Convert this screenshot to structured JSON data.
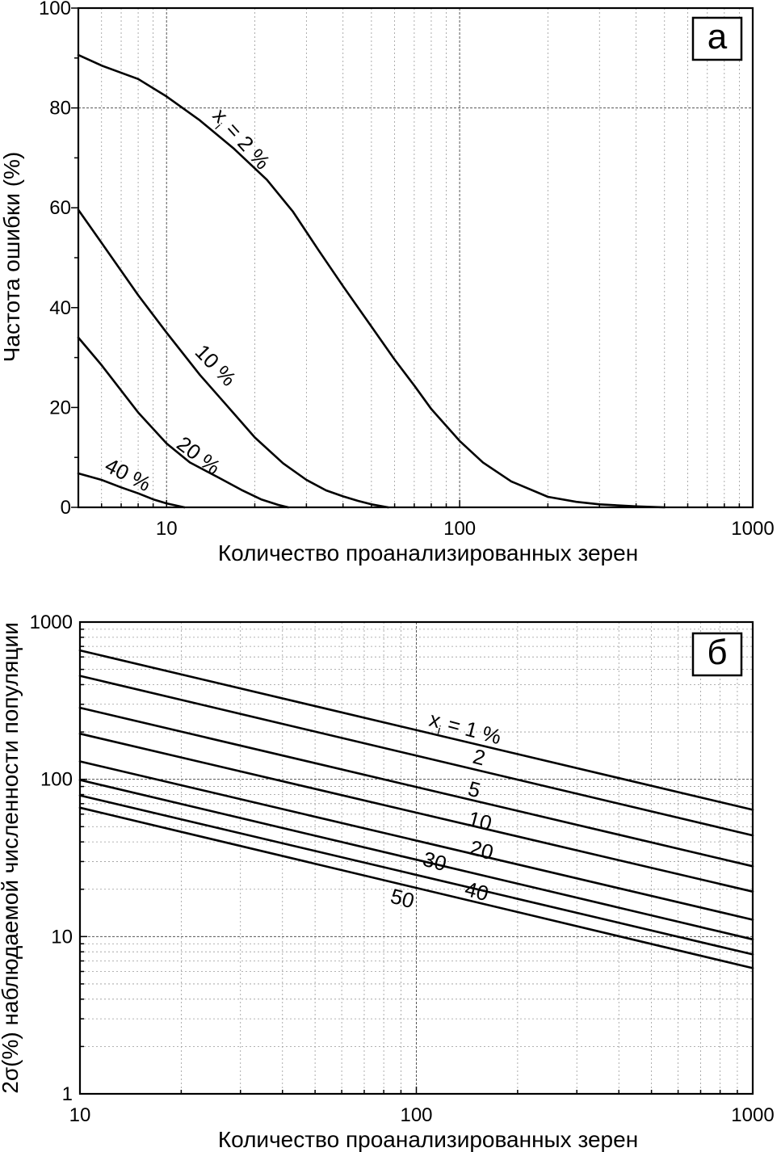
{
  "chart_data": [
    {
      "panel": "а",
      "type": "line",
      "xscale": "log",
      "yscale": "linear",
      "xlim": [
        5,
        1000
      ],
      "ylim": [
        0,
        100
      ],
      "xlabel": "Количество проанализированных зерен",
      "ylabel": "Частота ошибки (%)",
      "xticks": [
        10,
        100,
        1000
      ],
      "xtick_labels": [
        "10",
        "100",
        "1000"
      ],
      "yticks": [
        0,
        20,
        40,
        60,
        80,
        100
      ],
      "ytick_labels": [
        "0",
        "20",
        "40",
        "60",
        "80",
        "100"
      ],
      "grid": "vertical log minor lines, horizontal line at 80",
      "series": [
        {
          "label": "x_i = 2 %",
          "label_main": "x",
          "label_sub": "i",
          "label_rest": " = 2 %",
          "x": [
            5,
            6,
            8,
            10,
            13,
            17,
            22,
            27,
            33,
            40,
            50,
            60,
            70,
            80,
            100,
            120,
            150,
            200,
            250,
            300,
            400,
            500
          ],
          "y": [
            90.6,
            88.5,
            85.8,
            82.3,
            77.5,
            71.8,
            65.6,
            59.2,
            51.5,
            44.3,
            36.2,
            29.6,
            24.4,
            19.7,
            13.3,
            9.0,
            5.2,
            2.1,
            1.1,
            0.6,
            0.2,
            0
          ]
        },
        {
          "label": "10 %",
          "x": [
            5,
            6,
            8,
            10,
            13,
            16,
            20,
            25,
            30,
            35,
            40,
            45,
            50,
            57
          ],
          "y": [
            59.6,
            53.0,
            42.5,
            35.0,
            26.5,
            20.5,
            14.0,
            8.8,
            5.5,
            3.4,
            2.2,
            1.3,
            0.6,
            0
          ]
        },
        {
          "label": "20 %",
          "x": [
            5,
            6,
            8,
            10,
            12,
            15,
            18,
            21,
            24,
            26
          ],
          "y": [
            34.0,
            28.5,
            19.0,
            12.8,
            9.0,
            6.0,
            3.5,
            1.6,
            0.5,
            0
          ]
        },
        {
          "label": "40 %",
          "x": [
            5,
            6,
            7,
            8,
            9,
            10,
            11.5
          ],
          "y": [
            6.8,
            5.5,
            4.0,
            2.8,
            1.6,
            0.8,
            0
          ]
        }
      ]
    },
    {
      "panel": "б",
      "type": "line",
      "xscale": "log",
      "yscale": "log",
      "xlim": [
        10,
        1000
      ],
      "ylim": [
        1,
        1000
      ],
      "xlabel": "Количество проанализированных зерен",
      "ylabel": "2σ(%) наблюдаемой численности популяции",
      "xticks": [
        10,
        100,
        1000
      ],
      "xtick_labels": [
        "10",
        "100",
        "1000"
      ],
      "yticks": [
        1,
        10,
        100,
        1000
      ],
      "ytick_labels": [
        "1",
        "10",
        "100",
        "1000"
      ],
      "grid": "log minor lines both axes",
      "series": [
        {
          "label": "x_i = 1 %",
          "label_main": "x",
          "label_sub": "i",
          "label_rest": " = 1 %",
          "x": [
            10,
            1000
          ],
          "y": [
            660,
            64
          ]
        },
        {
          "label": "2",
          "x": [
            10,
            1000
          ],
          "y": [
            455,
            44
          ]
        },
        {
          "label": "5",
          "x": [
            10,
            1000
          ],
          "y": [
            285,
            28
          ]
        },
        {
          "label": "10",
          "x": [
            10,
            1000
          ],
          "y": [
            195,
            19.3
          ]
        },
        {
          "label": "20",
          "x": [
            10,
            1000
          ],
          "y": [
            130,
            12.8
          ]
        },
        {
          "label": "30",
          "x": [
            10,
            1000
          ],
          "y": [
            99,
            9.6
          ]
        },
        {
          "label": "40",
          "x": [
            10,
            1000
          ],
          "y": [
            79,
            7.7
          ]
        },
        {
          "label": "50",
          "x": [
            10,
            1000
          ],
          "y": [
            66,
            6.3
          ]
        }
      ]
    }
  ]
}
